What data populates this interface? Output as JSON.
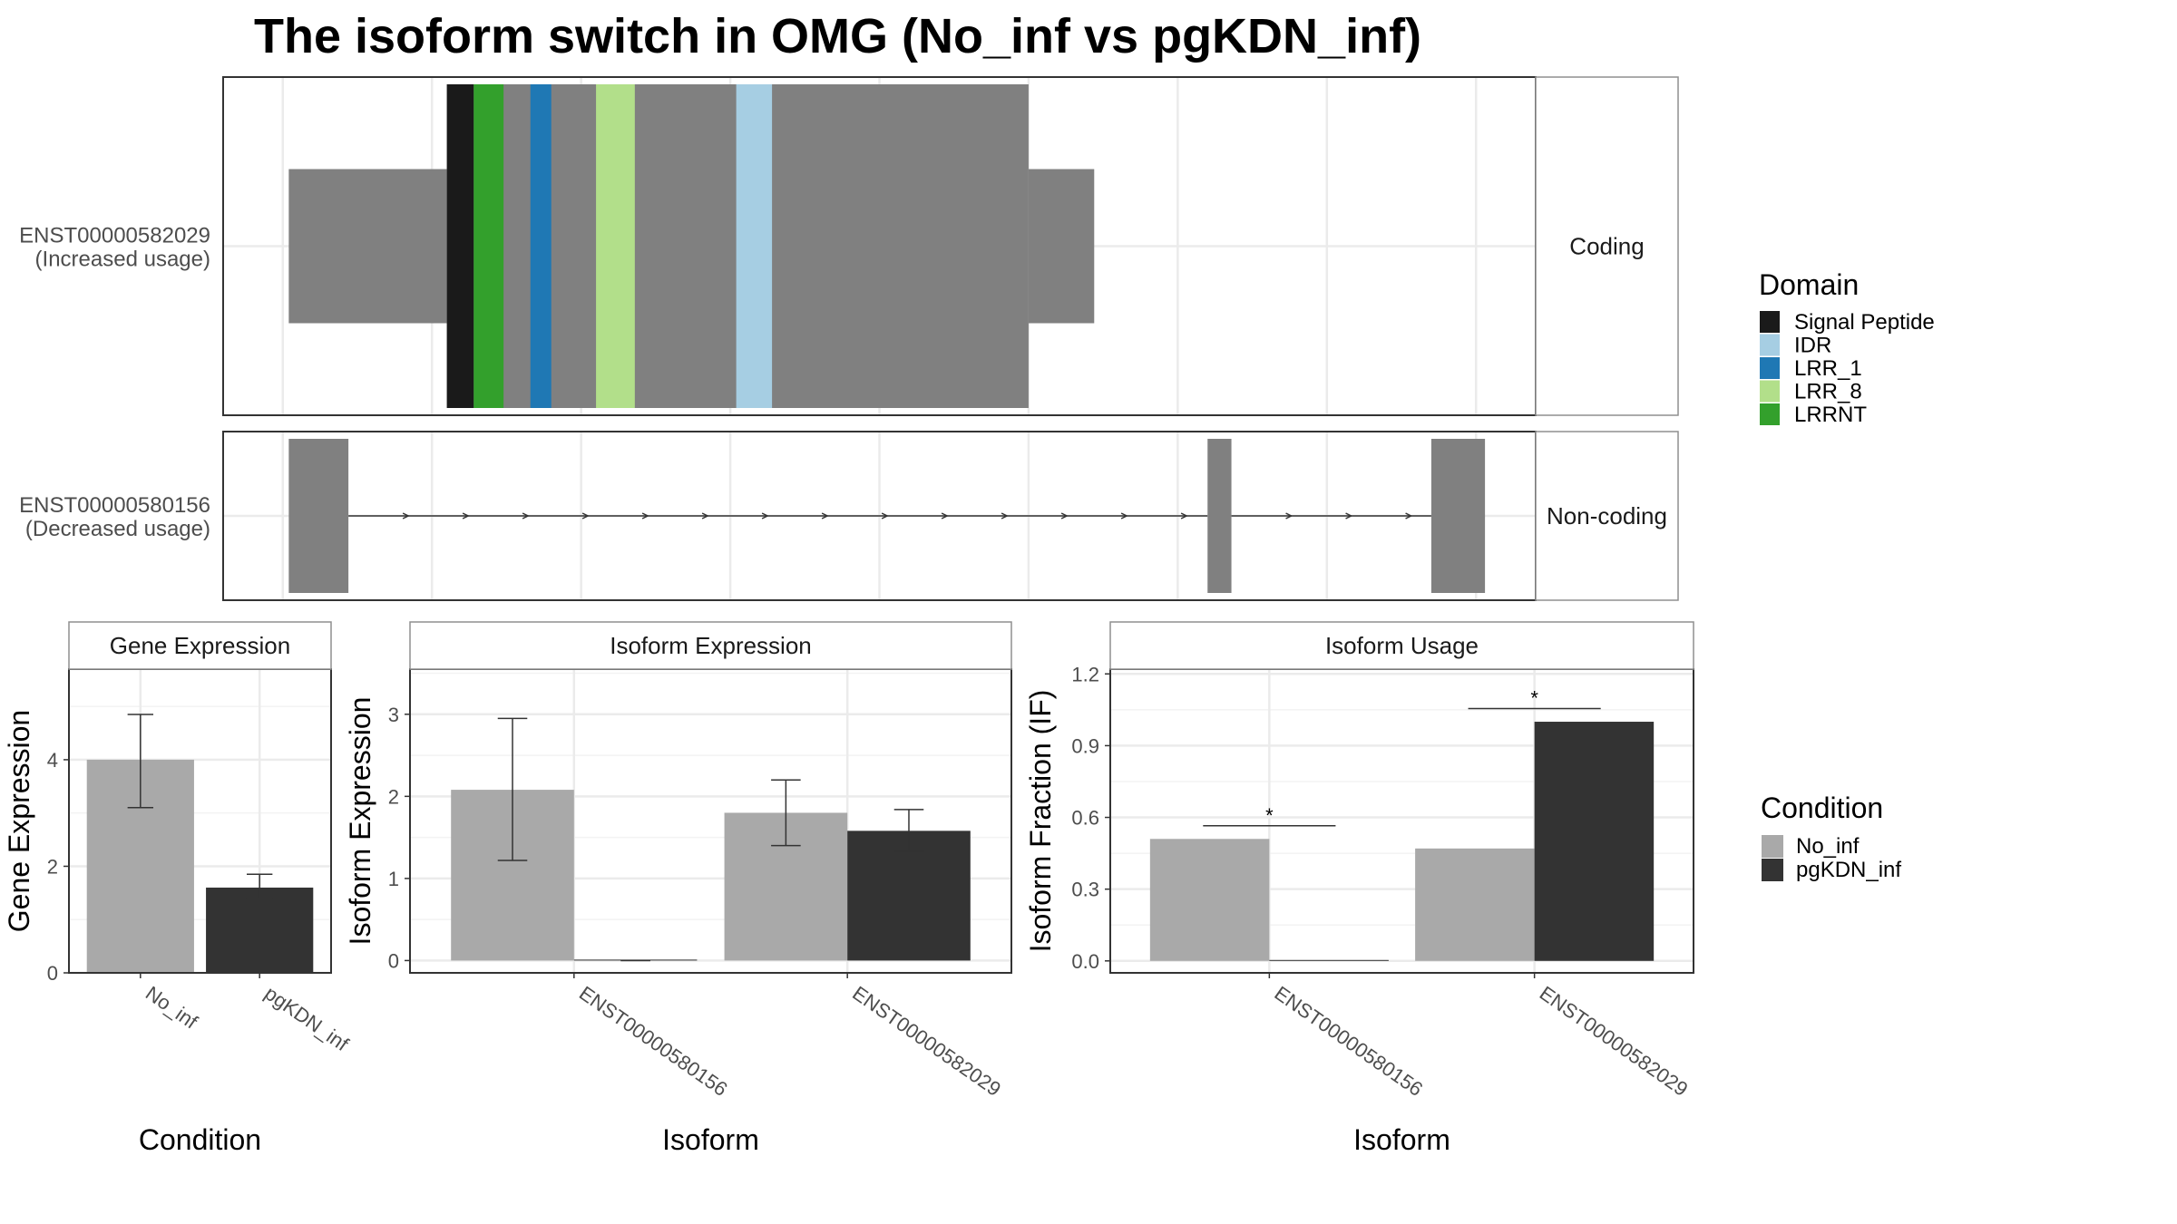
{
  "title": "The isoform switch in OMG (No_inf vs pgKDN_inf)",
  "colors": {
    "No_inf": "#a9a9a9",
    "pgKDN_inf": "#333333",
    "exon": "#808080",
    "Signal Peptide": "#1a1a1a",
    "IDR": "#a6cee3",
    "LRR_1": "#1f78b4",
    "LRR_8": "#b2df8a",
    "LRRNT": "#33a02c"
  },
  "chart_data": [
    {
      "type": "transcript-structure",
      "rows": [
        {
          "label": "ENST00000582029",
          "sublabel": "(Increased usage)",
          "facet": "Coding",
          "exons": [
            {
              "start": 0.02,
              "end": 0.55,
              "coding": false
            },
            {
              "start": 0.55,
              "end": 2.5,
              "coding": true
            },
            {
              "start": 2.5,
              "end": 2.72,
              "coding": false
            }
          ],
          "domains": [
            {
              "name": "Signal Peptide",
              "start": 0.55,
              "end": 0.64
            },
            {
              "name": "LRRNT",
              "start": 0.64,
              "end": 0.74
            },
            {
              "name": "LRR_1",
              "start": 0.83,
              "end": 0.9
            },
            {
              "name": "LRR_8",
              "start": 1.05,
              "end": 1.18
            },
            {
              "name": "IDR",
              "start": 1.52,
              "end": 1.64
            }
          ]
        },
        {
          "label": "ENST00000580156",
          "sublabel": "(Decreased usage)",
          "facet": "Non-coding",
          "exons": [
            {
              "start": 0.02,
              "end": 0.22,
              "coding": true
            },
            {
              "start": 3.1,
              "end": 3.18,
              "coding": true
            },
            {
              "start": 3.85,
              "end": 4.03,
              "coding": true
            }
          ],
          "xlim": [
            -0.2,
            4.2
          ]
        }
      ]
    },
    {
      "type": "bar",
      "facet_title": "Gene Expression",
      "categories": [
        "No_inf",
        "pgKDN_inf"
      ],
      "values": [
        4.0,
        1.6
      ],
      "error_low": [
        3.1,
        1.4
      ],
      "error_high": [
        4.85,
        1.85
      ],
      "xlabel": "Condition",
      "ylabel": "Gene Expression",
      "ylim": [
        0,
        5.7
      ],
      "yticks": [
        0,
        2,
        4
      ]
    },
    {
      "type": "bar",
      "facet_title": "Isoform Expression",
      "categories": [
        "ENST00000580156",
        "ENST00000582029"
      ],
      "series": [
        {
          "name": "No_inf",
          "values": [
            2.08,
            1.8
          ],
          "error_low": [
            1.22,
            1.4
          ],
          "error_high": [
            2.95,
            2.2
          ]
        },
        {
          "name": "pgKDN_inf",
          "values": [
            0.0,
            1.58
          ],
          "error_low": [
            0.0,
            1.33
          ],
          "error_high": [
            0.0,
            1.84
          ]
        }
      ],
      "xlabel": "Isoform",
      "ylabel": "Isoform Expression",
      "ylim": [
        -0.15,
        3.55
      ],
      "yticks": [
        0,
        1,
        2,
        3
      ]
    },
    {
      "type": "bar",
      "facet_title": "Isoform Usage",
      "categories": [
        "ENST00000580156",
        "ENST00000582029"
      ],
      "series": [
        {
          "name": "No_inf",
          "values": [
            0.51,
            0.47
          ]
        },
        {
          "name": "pgKDN_inf",
          "values": [
            0.0,
            1.0
          ]
        }
      ],
      "significance": [
        {
          "category": "ENST00000580156",
          "y": 0.565,
          "label": "*"
        },
        {
          "category": "ENST00000582029",
          "y": 1.055,
          "label": "*"
        }
      ],
      "xlabel": "Isoform",
      "ylabel": "Isoform Fraction (IF)",
      "ylim": [
        -0.05,
        1.22
      ],
      "yticks": [
        0.0,
        0.3,
        0.6,
        0.9,
        1.2
      ],
      "ytick_labels": [
        "0.0",
        "0.3",
        "0.6",
        "0.9",
        "1.2"
      ]
    }
  ],
  "legends": {
    "domain": {
      "title": "Domain",
      "items": [
        "Signal Peptide",
        "IDR",
        "LRR_1",
        "LRR_8",
        "LRRNT"
      ]
    },
    "condition": {
      "title": "Condition",
      "items": [
        "No_inf",
        "pgKDN_inf"
      ]
    }
  }
}
